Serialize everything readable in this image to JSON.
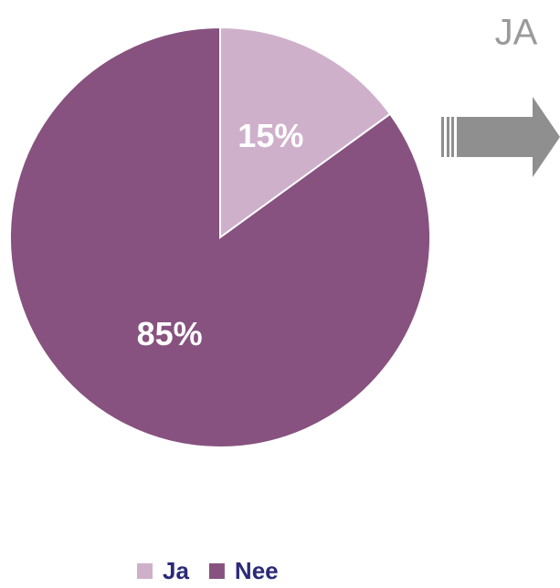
{
  "chart_data": {
    "type": "pie",
    "categories": [
      "Ja",
      "Nee"
    ],
    "values": [
      15,
      85
    ],
    "value_labels": [
      "15%",
      "85%"
    ],
    "colors": [
      "#cfb0cb",
      "#87527f"
    ],
    "legend": "bottom",
    "annotation": "JA"
  }
}
